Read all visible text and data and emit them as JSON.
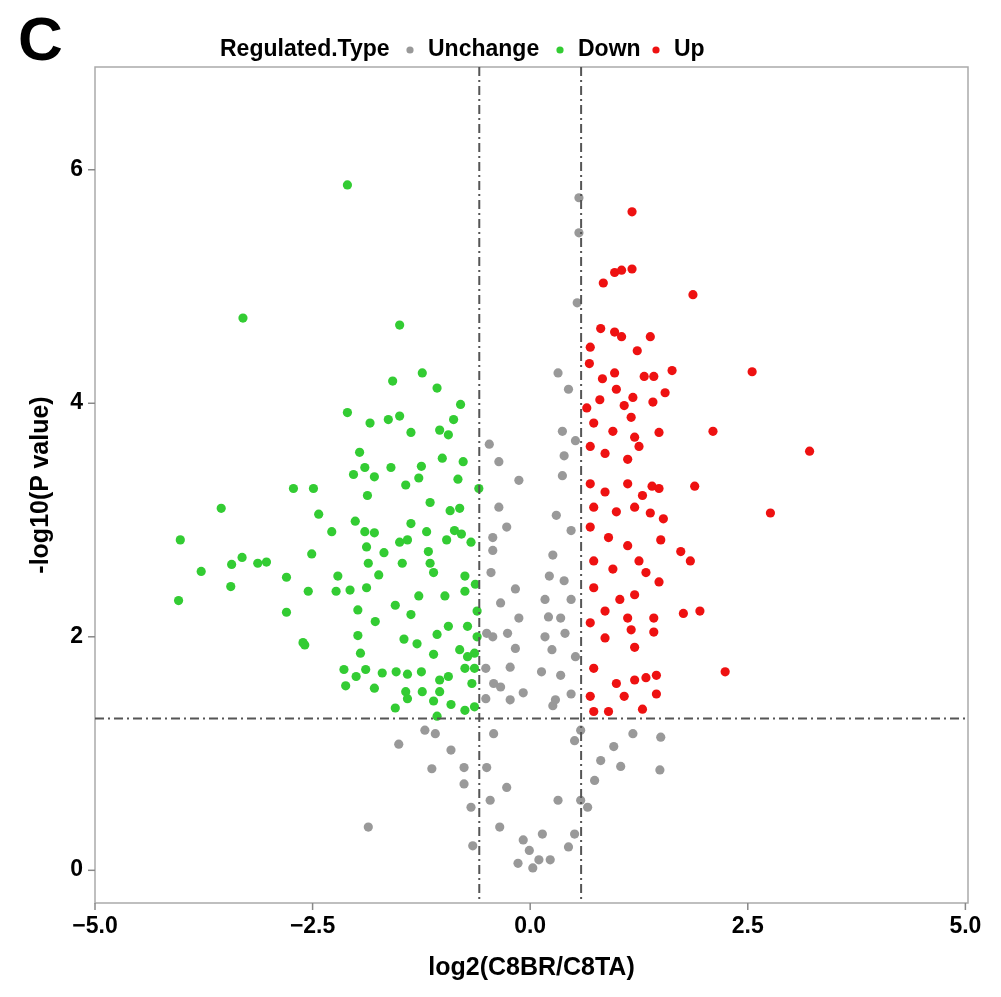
{
  "chart_data": {
    "type": "scatter",
    "title": "C",
    "xlabel": "log2(C8BR/C8TA)",
    "ylabel": "-log10(P value)",
    "legend_title": "Regulated.Type",
    "legend": "top",
    "grid": false,
    "marker": "circle",
    "xlim": [
      -5,
      5.03
    ],
    "ylim": [
      -0.28,
      6.88
    ],
    "xticks": [
      {
        "value": -5,
        "label": "−5.0"
      },
      {
        "value": -2.5,
        "label": "−2.5"
      },
      {
        "value": 0,
        "label": "0.0"
      },
      {
        "value": 2.5,
        "label": "2.5"
      },
      {
        "value": 5,
        "label": "5.0"
      }
    ],
    "yticks": [
      0,
      2,
      4,
      6
    ],
    "ref_lines": [
      {
        "axis": "x",
        "value": -0.585,
        "color": "#555555",
        "line_style": "dashed"
      },
      {
        "axis": "x",
        "value": 0.585,
        "color": "#555555",
        "line_style": "dashed"
      },
      {
        "axis": "y",
        "value": 1.301,
        "color": "#555555",
        "line_style": "dashed"
      }
    ],
    "series": [
      {
        "name": "Unchange",
        "color": "#999999",
        "x": [
          0.56,
          0.56,
          0.54,
          0.32,
          0.44,
          0.37,
          -0.47,
          -0.36,
          -0.13,
          0.39,
          0.52,
          0.37,
          -0.36,
          -0.27,
          -0.43,
          -0.43,
          -0.17,
          0.3,
          0.26,
          0.47,
          -0.45,
          -0.34,
          -0.13,
          -0.26,
          -0.43,
          -0.17,
          0.22,
          0.17,
          0.39,
          0.17,
          0.35,
          0.47,
          0.13,
          0.35,
          0.52,
          -0.08,
          -0.34,
          -0.51,
          0.47,
          0.26,
          -0.51,
          -1.51,
          -1.13,
          -0.66,
          -1.86,
          1.5,
          1.49,
          1.18,
          1.04,
          0.74,
          0.44,
          0.03,
          -0.14,
          0.23,
          -0.35,
          -0.46,
          -0.5,
          -0.42,
          -0.23,
          0.29,
          0.51,
          0.58,
          0.32,
          0.14,
          -0.08,
          -0.27,
          -1.09,
          -0.91,
          -0.76,
          -0.68,
          -0.76,
          -1.21,
          0.96,
          0.81,
          0.66,
          0.51,
          -0.01,
          0.1,
          -0.23,
          -0.5,
          0.25,
          0.21,
          0.4,
          -0.42,
          0.58
        ],
        "values": [
          5.76,
          5.46,
          4.86,
          4.26,
          4.12,
          3.76,
          3.65,
          3.5,
          3.34,
          3.55,
          3.68,
          3.38,
          3.11,
          2.94,
          2.85,
          2.74,
          2.41,
          3.04,
          2.7,
          2.91,
          2.55,
          2.29,
          2.16,
          2.03,
          2.0,
          1.9,
          2.52,
          2.32,
          2.48,
          2.0,
          2.16,
          2.32,
          1.7,
          1.67,
          1.83,
          1.52,
          1.57,
          1.47,
          1.51,
          1.41,
          1.73,
          1.08,
          0.87,
          0.21,
          0.37,
          1.14,
          0.86,
          1.17,
          0.89,
          0.77,
          0.2,
          0.02,
          0.06,
          0.09,
          0.37,
          0.6,
          0.88,
          1.17,
          1.46,
          1.46,
          1.11,
          0.6,
          0.6,
          0.31,
          0.26,
          0.71,
          1.17,
          1.03,
          0.74,
          0.54,
          0.88,
          1.2,
          1.06,
          0.94,
          0.54,
          0.31,
          0.17,
          0.09,
          1.74,
          2.03,
          1.89,
          2.17,
          2.03,
          1.6,
          1.2
        ]
      },
      {
        "name": "Down",
        "color": "#33cc33",
        "x": [
          -2.1,
          -3.3,
          -1.5,
          -1.24,
          -1.07,
          -1.58,
          -0.8,
          -2.1,
          -1.84,
          -1.63,
          -1.5,
          -1.37,
          -1.04,
          -0.88,
          -0.94,
          -1.96,
          -1.9,
          -2.03,
          -1.79,
          -1.6,
          -1.01,
          -0.77,
          -1.25,
          -1.28,
          -0.83,
          -1.43,
          -0.59,
          -2.72,
          -2.49,
          -1.87,
          -1.15,
          -0.92,
          -0.81,
          -3.55,
          -2.43,
          -2.01,
          -1.37,
          -2.28,
          -1.9,
          -1.79,
          -1.19,
          -0.87,
          -0.79,
          -4.02,
          -1.88,
          -1.5,
          -1.41,
          -0.96,
          -0.68,
          -1.17,
          -1.68,
          -3.31,
          -3.43,
          -3.13,
          -3.03,
          -3.78,
          -2.51,
          -1.86,
          -1.47,
          -1.15,
          -2.8,
          -2.21,
          -2.07,
          -2.23,
          -1.88,
          -1.74,
          -2.55,
          -3.44,
          -4.04,
          -0.75,
          -0.63,
          -1.11,
          -0.98,
          -0.75,
          -1.28,
          -1.55,
          -1.37,
          -1.98,
          -2.8,
          -1.78,
          -1.98,
          -2.59,
          -2.61,
          -1.45,
          -1.3,
          -1.07,
          -0.94,
          -0.72,
          -0.64,
          -0.81,
          -1.11,
          -1.95,
          -2.14,
          -2.0,
          -1.89,
          -2.12,
          -1.79,
          -1.7,
          -1.54,
          -1.41,
          -1.25,
          -1.24,
          -1.43,
          -1.04,
          -1.04,
          -0.94,
          -0.75,
          -0.67,
          -1.55,
          -1.41,
          -1.11,
          -0.91,
          -0.75,
          -0.64,
          -1.07,
          -0.61,
          -0.61,
          -0.64,
          -0.72
        ],
        "values": [
          5.87,
          4.73,
          4.67,
          4.26,
          4.13,
          4.19,
          3.99,
          3.92,
          3.83,
          3.86,
          3.89,
          3.75,
          3.77,
          3.86,
          3.73,
          3.58,
          3.45,
          3.39,
          3.37,
          3.45,
          3.53,
          3.5,
          3.46,
          3.36,
          3.35,
          3.3,
          3.27,
          3.27,
          3.27,
          3.21,
          3.15,
          3.08,
          3.1,
          3.1,
          3.05,
          2.99,
          2.97,
          2.9,
          2.9,
          2.89,
          2.9,
          2.91,
          2.88,
          2.83,
          2.77,
          2.81,
          2.83,
          2.83,
          2.81,
          2.73,
          2.72,
          2.68,
          2.62,
          2.63,
          2.64,
          2.56,
          2.71,
          2.63,
          2.63,
          2.63,
          2.51,
          2.52,
          2.4,
          2.39,
          2.42,
          2.53,
          2.39,
          2.43,
          2.31,
          2.52,
          2.45,
          2.55,
          2.35,
          2.39,
          2.35,
          2.27,
          2.19,
          2.23,
          2.21,
          2.13,
          2.01,
          1.93,
          1.95,
          1.98,
          1.94,
          2.02,
          2.09,
          2.09,
          1.86,
          1.89,
          1.85,
          1.86,
          1.72,
          1.66,
          1.72,
          1.58,
          1.56,
          1.69,
          1.7,
          1.68,
          1.7,
          1.53,
          1.53,
          1.63,
          1.53,
          1.66,
          1.73,
          1.6,
          1.39,
          1.47,
          1.45,
          1.42,
          1.37,
          1.4,
          1.32,
          2.22,
          2.0,
          1.73,
          1.83
        ]
      },
      {
        "name": "Up",
        "color": "#ee1111",
        "x": [
          1.17,
          0.84,
          0.97,
          1.05,
          1.17,
          1.87,
          0.81,
          0.97,
          1.05,
          1.38,
          1.23,
          0.69,
          1.63,
          1.31,
          1.42,
          2.55,
          0.68,
          0.83,
          0.97,
          1.55,
          1.41,
          0.99,
          1.18,
          0.65,
          0.8,
          1.08,
          1.16,
          1.48,
          2.1,
          3.21,
          0.73,
          0.95,
          1.2,
          0.69,
          0.86,
          1.12,
          1.25,
          1.89,
          1.4,
          1.48,
          2.76,
          0.69,
          0.86,
          1.12,
          1.29,
          0.73,
          0.99,
          1.2,
          1.38,
          1.53,
          1.5,
          1.73,
          1.84,
          0.69,
          0.9,
          1.12,
          1.25,
          1.33,
          0.73,
          0.95,
          1.48,
          0.73,
          1.03,
          1.2,
          0.86,
          1.12,
          1.42,
          1.42,
          1.76,
          1.95,
          1.16,
          1.2,
          0.86,
          0.69,
          2.24,
          1.45,
          1.45,
          0.73,
          0.99,
          1.2,
          1.33,
          0.69,
          1.08,
          0.9,
          1.29,
          0.73
        ],
        "values": [
          5.64,
          5.03,
          5.12,
          5.14,
          5.15,
          4.93,
          4.64,
          4.61,
          4.57,
          4.57,
          4.45,
          4.48,
          4.28,
          4.23,
          4.23,
          4.27,
          4.34,
          4.21,
          4.26,
          4.09,
          4.01,
          4.12,
          4.05,
          3.96,
          4.03,
          3.98,
          3.88,
          3.75,
          3.76,
          3.59,
          3.83,
          3.76,
          3.71,
          3.63,
          3.57,
          3.52,
          3.63,
          3.29,
          3.29,
          3.27,
          3.06,
          3.31,
          3.24,
          3.31,
          3.21,
          3.11,
          3.07,
          3.11,
          3.06,
          3.01,
          2.83,
          2.73,
          2.65,
          2.94,
          2.85,
          2.78,
          2.65,
          2.55,
          2.65,
          2.58,
          2.47,
          2.42,
          2.32,
          2.36,
          2.22,
          2.16,
          2.16,
          2.04,
          2.2,
          2.22,
          2.06,
          1.91,
          1.99,
          2.12,
          1.7,
          1.67,
          1.51,
          1.73,
          1.6,
          1.63,
          1.65,
          1.49,
          1.49,
          1.36,
          1.38,
          1.36
        ]
      }
    ]
  }
}
